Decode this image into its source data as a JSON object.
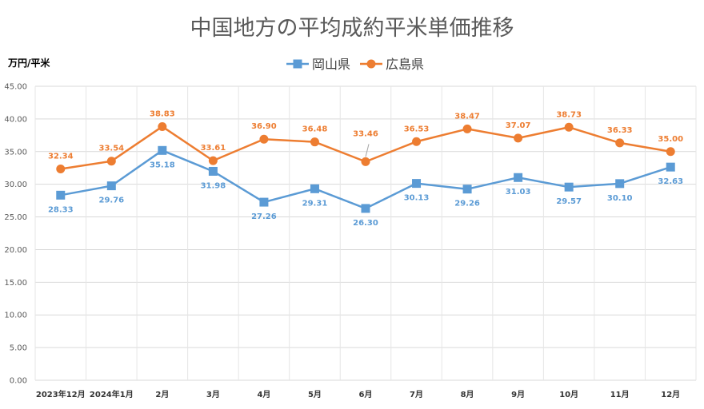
{
  "chart_data": {
    "type": "line",
    "title": "中国地方の平均成約平米単価推移",
    "ylabel": "万円/平米",
    "xlabel": "",
    "categories": [
      "2023年12月",
      "2024年1月",
      "2月",
      "3月",
      "4月",
      "5月",
      "6月",
      "7月",
      "8月",
      "9月",
      "10月",
      "11月",
      "12月"
    ],
    "ylim": [
      0,
      45
    ],
    "yticks": [
      "0.00",
      "5.00",
      "10.00",
      "15.00",
      "20.00",
      "25.00",
      "30.00",
      "35.00",
      "40.00",
      "45.00"
    ],
    "grid": true,
    "legend_position": "top-center",
    "series": [
      {
        "name": "岡山県",
        "color": "#5b9bd5",
        "marker": "square",
        "values": [
          28.33,
          29.76,
          35.18,
          31.98,
          27.26,
          29.31,
          26.3,
          30.13,
          29.26,
          31.03,
          29.57,
          30.1,
          32.63
        ],
        "labels": [
          "28.33",
          "29.76",
          "35.18",
          "31.98",
          "27.26",
          "29.31",
          "26.30",
          "30.13",
          "29.26",
          "31.03",
          "29.57",
          "30.10",
          "32.63"
        ]
      },
      {
        "name": "広島県",
        "color": "#ed7d31",
        "marker": "circle",
        "values": [
          32.34,
          33.54,
          38.83,
          33.61,
          36.9,
          36.48,
          33.46,
          36.53,
          38.47,
          37.07,
          38.73,
          36.33,
          35.0
        ],
        "labels": [
          "32.34",
          "33.54",
          "38.83",
          "33.61",
          "36.90",
          "36.48",
          "33.46",
          "36.53",
          "38.47",
          "37.07",
          "38.73",
          "36.33",
          "35.00"
        ]
      }
    ]
  }
}
